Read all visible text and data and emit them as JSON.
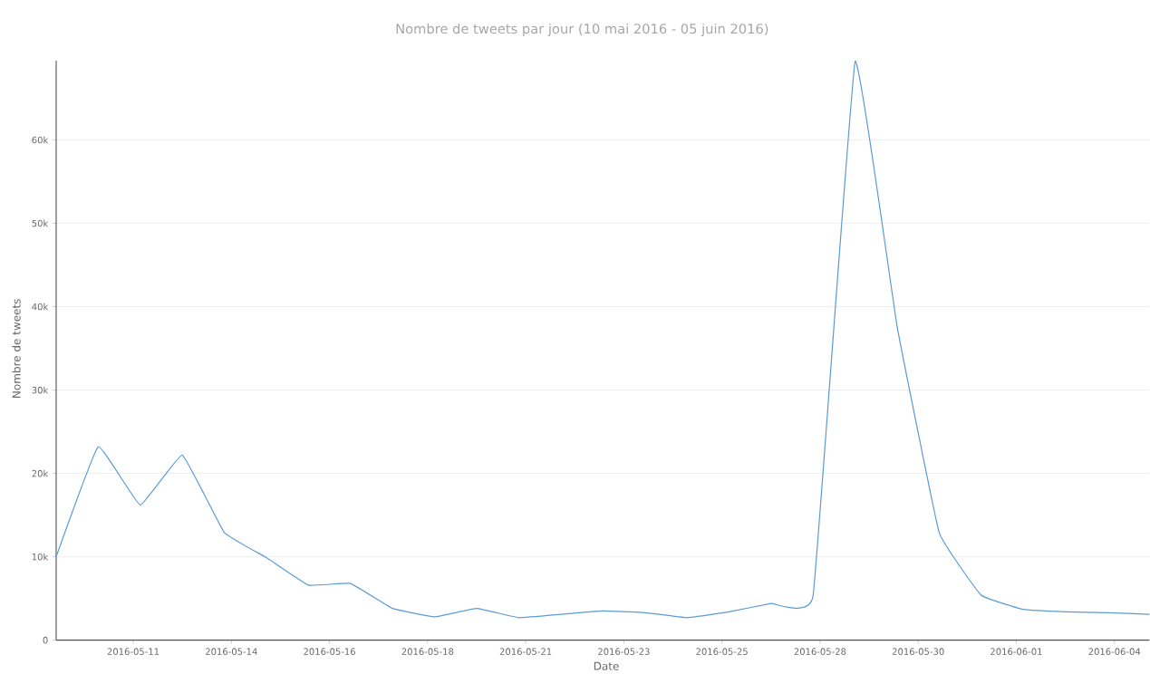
{
  "chart_data": {
    "type": "line",
    "title": "Nombre de tweets par jour (10 mai 2016 - 05 juin 2016)",
    "xlabel": "Date",
    "ylabel": "Nombre de tweets",
    "x": [
      "2016-05-10",
      "2016-05-11",
      "2016-05-12",
      "2016-05-13",
      "2016-05-14",
      "2016-05-15",
      "2016-05-16",
      "2016-05-17",
      "2016-05-18",
      "2016-05-19",
      "2016-05-20",
      "2016-05-21",
      "2016-05-22",
      "2016-05-23",
      "2016-05-24",
      "2016-05-25",
      "2016-05-26",
      "2016-05-27",
      "2016-05-28",
      "2016-05-29",
      "2016-05-30",
      "2016-05-31",
      "2016-06-01",
      "2016-06-02",
      "2016-06-03",
      "2016-06-04",
      "2016-06-05"
    ],
    "series": [
      {
        "color": "#5b9bd5",
        "values": [
          10000,
          23200,
          16200,
          22200,
          12900,
          9900,
          6600,
          6800,
          3800,
          2800,
          3800,
          2700,
          3100,
          3500,
          3300,
          2700,
          3400,
          4400,
          5300,
          69400,
          37600,
          12900,
          5400,
          3700,
          3400,
          3300,
          3100
        ]
      }
    ],
    "xlim": [
      "2016-05-10",
      "2016-06-05"
    ],
    "xticks": [
      {
        "value": "2016-05-11T20:00",
        "label": "2016-05-11"
      },
      {
        "value": "2016-05-14T04:00",
        "label": "2016-05-14"
      },
      {
        "value": "2016-05-16T12:00",
        "label": "2016-05-16"
      },
      {
        "value": "2016-05-18T20:00",
        "label": "2016-05-18"
      },
      {
        "value": "2016-05-21T04:00",
        "label": "2016-05-21"
      },
      {
        "value": "2016-05-23T12:00",
        "label": "2016-05-23"
      },
      {
        "value": "2016-05-25T20:00",
        "label": "2016-05-25"
      },
      {
        "value": "2016-05-28T04:00",
        "label": "2016-05-28"
      },
      {
        "value": "2016-05-30T12:00",
        "label": "2016-05-30"
      },
      {
        "value": "2016-06-01T20:00",
        "label": "2016-06-01"
      },
      {
        "value": "2016-06-04T04:00",
        "label": "2016-06-04"
      }
    ],
    "ylim": [
      0,
      69500
    ],
    "yticks": [
      0,
      {
        "value": 10000,
        "label": "10k"
      },
      {
        "value": 20000,
        "label": "20k"
      },
      {
        "value": 30000,
        "label": "30k"
      },
      {
        "value": 40000,
        "label": "40k"
      },
      {
        "value": 50000,
        "label": "50k"
      },
      {
        "value": 60000,
        "label": "60k"
      }
    ],
    "grid": "y",
    "marker": "none",
    "line_style": "solid"
  }
}
